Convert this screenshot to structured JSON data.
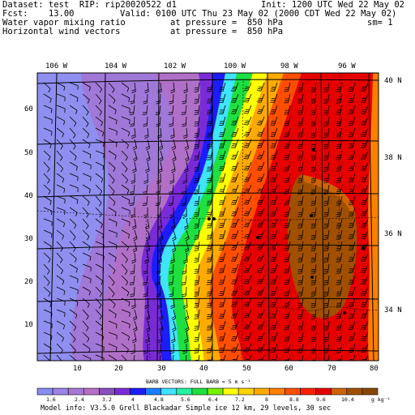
{
  "header": {
    "line1_left": "Dataset: test  RIP: rip20020522 d1",
    "line1_right": "Init: 1200 UTC Wed 22 May 02",
    "line2_left": "Fcst:    13.00",
    "line2_right": "Valid: 0100 UTC Thu 23 May 02 (2000 CDT Wed 22 May 02)",
    "line3_left": "Water vapor mixing ratio",
    "line3_mid": "at pressure =  850 hPa",
    "line3_right": "sm= 1",
    "line4_left": "Horizontal wind vectors",
    "line4_mid": "at pressure =  850 hPa"
  },
  "map": {
    "lon_labels": [
      "106 W",
      "104 W",
      "102 W",
      "100 W",
      "98 W",
      "96 W"
    ],
    "lat_labels": [
      "40 N",
      "38 N",
      "36 N",
      "34 N"
    ],
    "x_ticks": [
      "10",
      "20",
      "30",
      "40",
      "50",
      "60",
      "70",
      "80"
    ],
    "y_ticks": [
      "60",
      "50",
      "40",
      "30",
      "20",
      "10"
    ]
  },
  "colorbar": {
    "title": "BARB VECTORS:  FULL BARB = 5 m s⁻¹",
    "colors": [
      "#8b8cf2",
      "#9b85e8",
      "#a878d6",
      "#b570c8",
      "#8a4fc0",
      "#7a2bd8",
      "#1d1dfc",
      "#1880ff",
      "#3fe4ff",
      "#25f0a0",
      "#1ee040",
      "#78f000",
      "#ffff00",
      "#ffd200",
      "#ffaa00",
      "#ff7f00",
      "#ff4e00",
      "#ff2000",
      "#e60000",
      "#d06400",
      "#a05000",
      "#884800"
    ],
    "labels": [
      "1.6",
      "2.4",
      "3.2",
      "4",
      "4.8",
      "5.6",
      "6.4",
      "7.2",
      "8",
      "8.8",
      "9.6",
      "10.4"
    ],
    "unit": "g kg⁻¹"
  },
  "footer": "Model info: V3.5.0  Grell    Blackadar  Simple ice    12 km,  29 levels,   30 sec"
}
